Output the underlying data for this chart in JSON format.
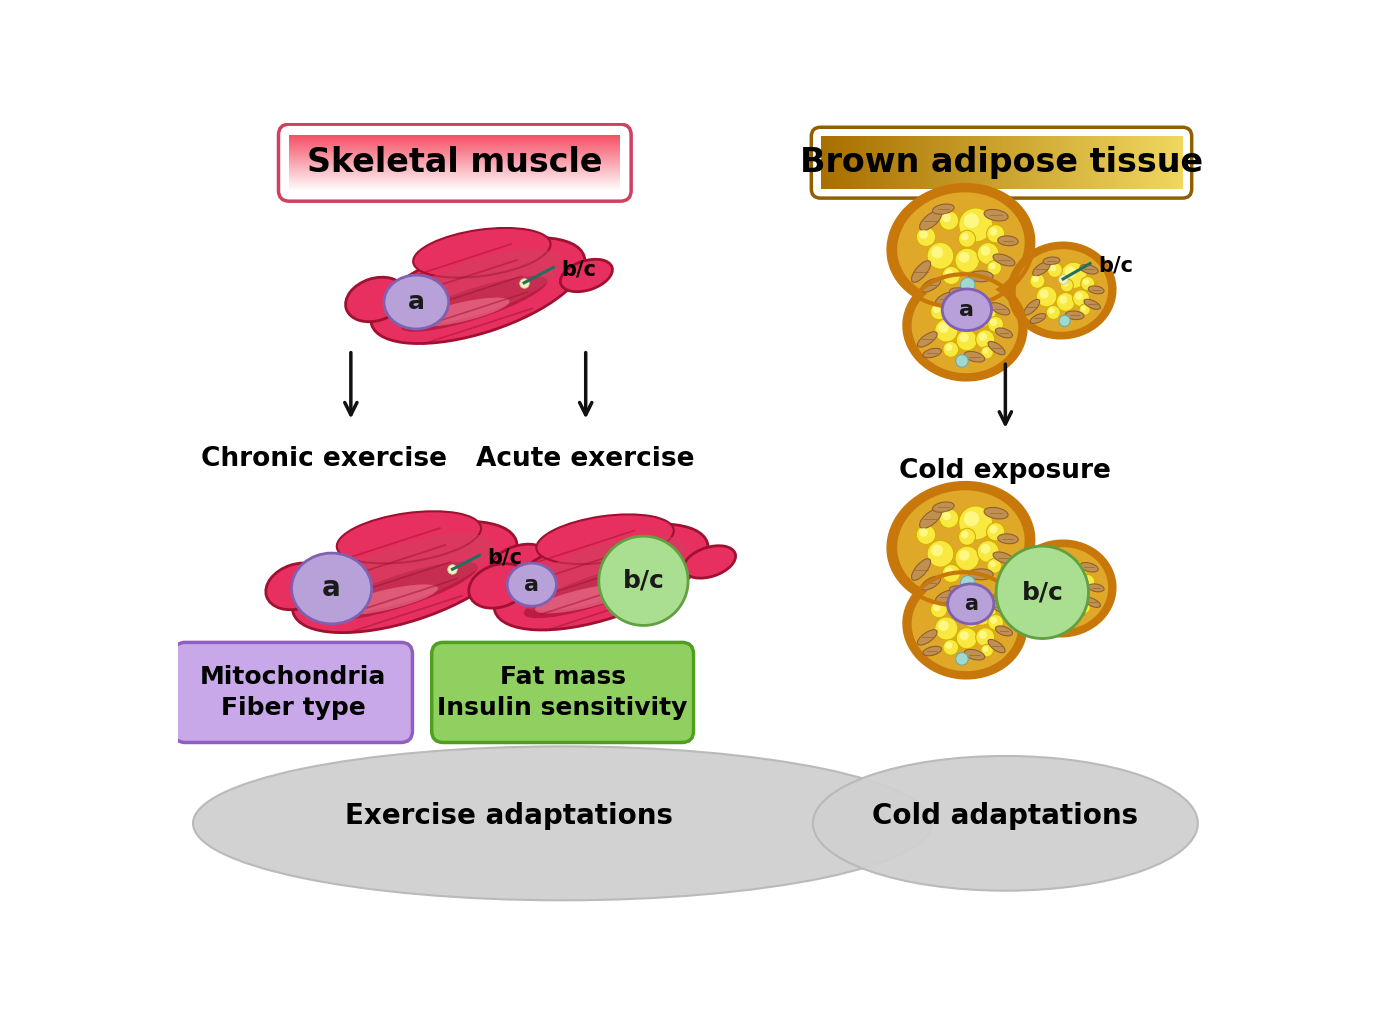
{
  "skeletal_muscle_label": "Skeletal muscle",
  "brown_adipose_label": "Brown adipose tissue",
  "chronic_exercise_label": "Chronic exercise",
  "acute_exercise_label": "Acute exercise",
  "cold_exposure_label": "Cold exposure",
  "mitochondria_label": "Mitochondria\nFiber type",
  "fat_mass_label": "Fat mass\nInsulin sensitivity",
  "exercise_adapt_label": "Exercise adaptations",
  "cold_adapt_label": "Cold adaptations",
  "a_label": "a",
  "bc_label": "b/c",
  "purple_circle_color": "#B8A0D8",
  "purple_circle_edge": "#8060B0",
  "green_circle_color": "#AADE90",
  "green_circle_edge": "#60A040",
  "purple_box_color": "#C8A8E8",
  "purple_box_edge": "#9060C0",
  "green_box_color": "#90D060",
  "green_box_edge": "#50A020",
  "muscle_base": "#E83060",
  "muscle_dark": "#A01030",
  "muscle_mid": "#D04060",
  "muscle_light": "#FF7090",
  "muscle_highlight": "#FF90A8",
  "fat_outer": "#C8780A",
  "fat_inner": "#D49020",
  "fat_fill": "#E0A828",
  "fat_droplet_big": "#F8E840",
  "fat_droplet_glow": "#FFFFA0",
  "fat_mito": "#C09050",
  "fat_mito_dark": "#906030",
  "fat_vacuole": "#A0D8D0",
  "teal_line": "#207060",
  "pin_color": "#F0F0C0",
  "ellipse_bottom_color": "#D0D0D0",
  "ellipse_bottom_edge": "#B8B8B8",
  "background": "#FFFFFF",
  "text_color": "#000000",
  "arrow_color": "#111111",
  "sm_box_left": "#F06878",
  "sm_box_right": "#FFD0D8",
  "sm_box_edge": "#D04060",
  "bat_box_left": "#B87010",
  "bat_box_right": "#E8CC60",
  "bat_box_mid": "#D4A020",
  "bat_box_edge": "#906000"
}
